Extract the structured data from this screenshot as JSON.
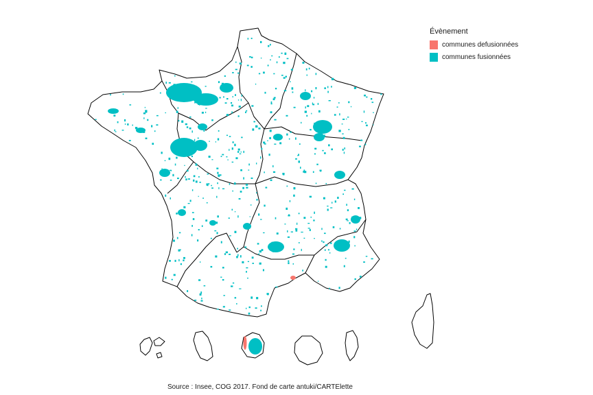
{
  "legend": {
    "title": "Évènement",
    "items": [
      {
        "label": "communes defusionnées",
        "color": "#F8766D"
      },
      {
        "label": "communes fusionnées",
        "color": "#00BFC4"
      }
    ]
  },
  "caption": "Source : Insee, COG 2017. Fond de carte antuki/CARTElette",
  "map": {
    "territories": [
      "metropolitan-france",
      "corsica",
      "guadeloupe",
      "martinique",
      "guyane",
      "la-reunion",
      "mayotte"
    ],
    "background": "#ffffff",
    "border_color": "#000000"
  }
}
